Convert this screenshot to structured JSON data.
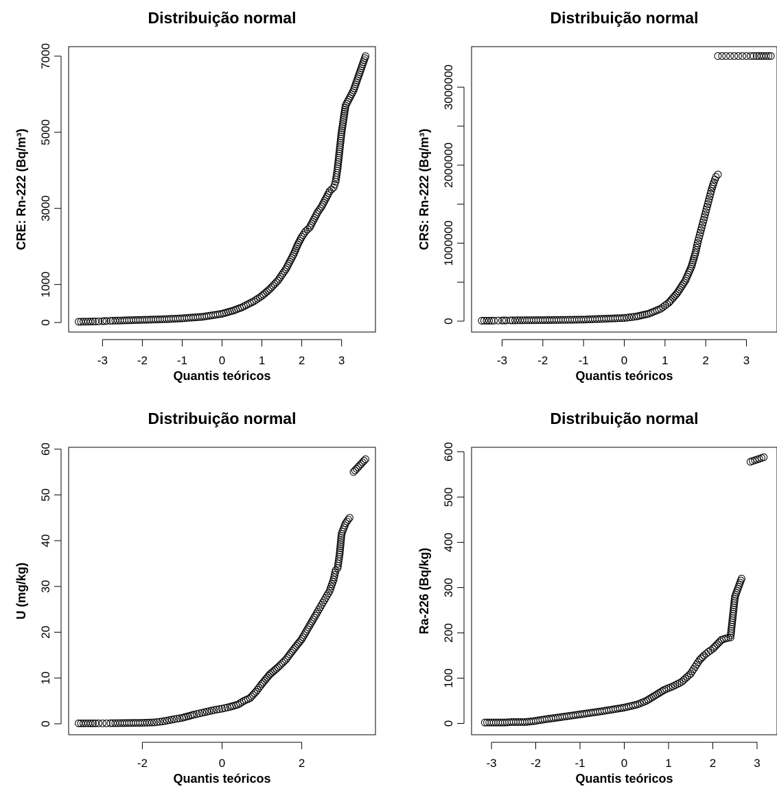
{
  "chart_data": [
    {
      "type": "scatter",
      "title": "Distribuição normal",
      "xlabel": "Quantis teóricos",
      "ylabel": "CRE: Rn-222 (Bq/m³)",
      "xlim": [
        -3.85,
        3.85
      ],
      "ylim": [
        -250,
        7250
      ],
      "xticks": [
        -3,
        -2,
        -1,
        0,
        1,
        2,
        3
      ],
      "yticks": [
        0,
        1000,
        3000,
        5000,
        7000
      ],
      "points": [
        [
          -3.6,
          20
        ],
        [
          -3.3,
          25
        ],
        [
          -3.18,
          28
        ],
        [
          -3.1,
          30
        ],
        [
          -3.0,
          35
        ],
        [
          -2.95,
          38
        ],
        [
          -2.9,
          40
        ],
        [
          -2.8,
          45
        ],
        [
          -2.5,
          55
        ],
        [
          -2.0,
          70
        ],
        [
          -1.5,
          85
        ],
        [
          -1.0,
          110
        ],
        [
          -0.5,
          150
        ],
        [
          0.0,
          230
        ],
        [
          0.3,
          320
        ],
        [
          0.5,
          400
        ],
        [
          0.8,
          560
        ],
        [
          1.0,
          700
        ],
        [
          1.2,
          880
        ],
        [
          1.4,
          1100
        ],
        [
          1.6,
          1400
        ],
        [
          1.8,
          1800
        ],
        [
          1.9,
          2050
        ],
        [
          2.0,
          2250
        ],
        [
          2.1,
          2400
        ],
        [
          2.2,
          2500
        ],
        [
          2.3,
          2700
        ],
        [
          2.4,
          2900
        ],
        [
          2.5,
          3050
        ],
        [
          2.6,
          3250
        ],
        [
          2.7,
          3450
        ],
        [
          2.8,
          3550
        ],
        [
          2.85,
          3700
        ],
        [
          2.9,
          4050
        ],
        [
          3.0,
          5000
        ],
        [
          3.1,
          5700
        ],
        [
          3.3,
          6100
        ],
        [
          3.6,
          7000
        ]
      ]
    },
    {
      "type": "scatter",
      "title": "Distribuição normal",
      "xlabel": "Quantis teóricos",
      "ylabel": "CRS: Rn-222 (Bq/m³)",
      "xlim": [
        -3.75,
        3.75
      ],
      "ylim": [
        -140000,
        3520000
      ],
      "xticks": [
        -3,
        -2,
        -1,
        0,
        1,
        2,
        3
      ],
      "yticks": [
        0,
        1000000,
        2000000,
        3000000
      ],
      "ytick_labels": [
        "0",
        "1000000",
        "2000000",
        "3000000"
      ],
      "minor_yticks": [
        500000,
        1500000,
        2500000
      ],
      "points": [
        [
          -3.5,
          5000
        ],
        [
          -3.2,
          6000
        ],
        [
          -3.1,
          7000
        ],
        [
          -3.0,
          8000
        ],
        [
          -2.95,
          8500
        ],
        [
          -2.9,
          9000
        ],
        [
          -2.8,
          9500
        ],
        [
          -2.5,
          11000
        ],
        [
          -2.0,
          13000
        ],
        [
          -1.5,
          16000
        ],
        [
          -1.0,
          20000
        ],
        [
          -0.5,
          30000
        ],
        [
          0.0,
          40000
        ],
        [
          0.3,
          60000
        ],
        [
          0.6,
          95000
        ],
        [
          0.9,
          160000
        ],
        [
          1.1,
          240000
        ],
        [
          1.3,
          360000
        ],
        [
          1.5,
          520000
        ],
        [
          1.65,
          700000
        ],
        [
          1.75,
          880000
        ],
        [
          1.8,
          1000000
        ],
        [
          1.85,
          1100000
        ],
        [
          1.9,
          1200000
        ],
        [
          1.95,
          1300000
        ],
        [
          2.0,
          1400000
        ],
        [
          2.05,
          1500000
        ],
        [
          2.1,
          1600000
        ],
        [
          2.15,
          1700000
        ],
        [
          2.2,
          1780000
        ],
        [
          2.25,
          1850000
        ],
        [
          2.3,
          1880000
        ],
        [
          2.3,
          3400000
        ],
        [
          2.4,
          3400000
        ],
        [
          2.5,
          3400000
        ],
        [
          2.6,
          3400000
        ],
        [
          2.7,
          3400000
        ],
        [
          2.8,
          3400000
        ],
        [
          2.9,
          3400000
        ],
        [
          3.0,
          3400000
        ],
        [
          3.1,
          3400000
        ],
        [
          3.25,
          3400000
        ],
        [
          3.6,
          3400000
        ]
      ]
    },
    {
      "type": "scatter",
      "title": "Distribuição normal",
      "xlabel": "Quantis teóricos",
      "ylabel": "U (mg/kg)",
      "xlim": [
        -3.85,
        3.85
      ],
      "ylim": [
        -2.4,
        60.4
      ],
      "xticks": [
        -2,
        0,
        2
      ],
      "yticks": [
        0,
        10,
        20,
        30,
        40,
        50,
        60
      ],
      "points": [
        [
          -3.6,
          0.1
        ],
        [
          -3.3,
          0.1
        ],
        [
          -3.18,
          0.1
        ],
        [
          -3.1,
          0.1
        ],
        [
          -3.0,
          0.1
        ],
        [
          -2.9,
          0.1
        ],
        [
          -2.8,
          0.12
        ],
        [
          -2.5,
          0.15
        ],
        [
          -2.0,
          0.2
        ],
        [
          -1.7,
          0.3
        ],
        [
          -1.5,
          0.5
        ],
        [
          -1.2,
          1.0
        ],
        [
          -1.0,
          1.3
        ],
        [
          -0.7,
          2.0
        ],
        [
          -0.5,
          2.4
        ],
        [
          -0.2,
          3.0
        ],
        [
          0.0,
          3.3
        ],
        [
          0.2,
          3.7
        ],
        [
          0.4,
          4.2
        ],
        [
          0.55,
          5.0
        ],
        [
          0.7,
          5.6
        ],
        [
          0.85,
          7.0
        ],
        [
          1.0,
          8.7
        ],
        [
          1.2,
          10.8
        ],
        [
          1.4,
          12.3
        ],
        [
          1.6,
          14.0
        ],
        [
          1.8,
          16.3
        ],
        [
          2.0,
          18.5
        ],
        [
          2.2,
          21.5
        ],
        [
          2.4,
          24.5
        ],
        [
          2.5,
          26.0
        ],
        [
          2.6,
          27.5
        ],
        [
          2.7,
          29.0
        ],
        [
          2.8,
          31.5
        ],
        [
          2.85,
          33.5
        ],
        [
          2.9,
          34.0
        ],
        [
          2.95,
          37.0
        ],
        [
          3.0,
          41.5
        ],
        [
          3.1,
          43.8
        ],
        [
          3.2,
          45.0
        ],
        [
          3.3,
          55.0
        ],
        [
          3.6,
          57.8
        ]
      ]
    },
    {
      "type": "scatter",
      "title": "Distribuição normal",
      "xlabel": "Quantis teóricos",
      "ylabel": "Ra-226 (Bq/kg)",
      "xlim": [
        -3.45,
        3.45
      ],
      "ylim": [
        -25,
        610
      ],
      "xticks": [
        -3,
        -2,
        -1,
        0,
        1,
        2,
        3
      ],
      "yticks": [
        0,
        100,
        200,
        300,
        400,
        500,
        600
      ],
      "points": [
        [
          -3.15,
          2
        ],
        [
          -2.85,
          2
        ],
        [
          -2.7,
          2
        ],
        [
          -2.55,
          3
        ],
        [
          -2.45,
          3
        ],
        [
          -2.35,
          3
        ],
        [
          -2.25,
          3
        ],
        [
          -2.15,
          4
        ],
        [
          -2.05,
          5
        ],
        [
          -1.8,
          9
        ],
        [
          -1.5,
          13
        ],
        [
          -1.0,
          20
        ],
        [
          -0.5,
          27
        ],
        [
          0.0,
          35
        ],
        [
          0.3,
          42
        ],
        [
          0.5,
          50
        ],
        [
          0.7,
          62
        ],
        [
          0.9,
          74
        ],
        [
          1.1,
          82
        ],
        [
          1.3,
          92
        ],
        [
          1.5,
          110
        ],
        [
          1.6,
          125
        ],
        [
          1.7,
          140
        ],
        [
          1.8,
          150
        ],
        [
          1.9,
          158
        ],
        [
          2.0,
          165
        ],
        [
          2.1,
          175
        ],
        [
          2.2,
          185
        ],
        [
          2.3,
          188
        ],
        [
          2.4,
          190
        ],
        [
          2.5,
          280
        ],
        [
          2.65,
          320
        ],
        [
          2.85,
          578
        ],
        [
          3.15,
          588
        ]
      ]
    }
  ]
}
